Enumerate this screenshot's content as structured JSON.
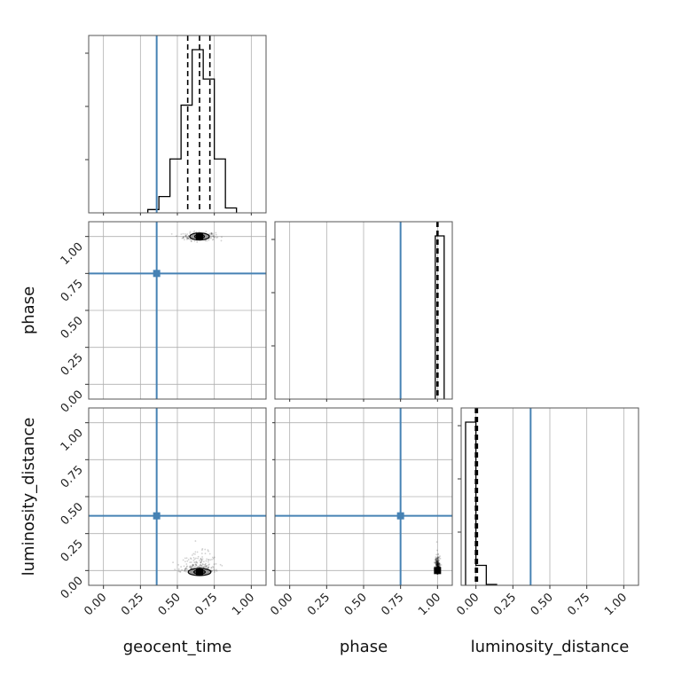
{
  "chart_data": {
    "type": "corner",
    "parameters": [
      "geocent_time",
      "phase",
      "luminosity_distance"
    ],
    "axis_range": [
      -0.1,
      1.1
    ],
    "tick_values": [
      0,
      0.25,
      0.5,
      0.75,
      1.0
    ],
    "tick_labels": [
      "0.00",
      "0.25",
      "0.50",
      "0.75",
      "1.00"
    ],
    "grid": true,
    "truth_color": "#4682b4",
    "truths": {
      "geocent_time": 0.36,
      "phase": 0.75,
      "luminosity_distance": 0.37
    },
    "diagonal": [
      {
        "param": "geocent_time",
        "bin_edges": [
          0.3,
          0.375,
          0.45,
          0.525,
          0.6,
          0.675,
          0.75,
          0.825,
          0.9
        ],
        "counts": [
          0.02,
          0.1,
          0.33,
          0.66,
          1.0,
          0.82,
          0.33,
          0.03
        ],
        "quantiles": [
          0.57,
          0.65,
          0.72
        ]
      },
      {
        "param": "phase",
        "bin_edges": [
          0.985,
          1.045
        ],
        "counts": [
          1.0
        ],
        "quantiles": [
          0.997,
          1.0,
          1.003
        ]
      },
      {
        "param": "luminosity_distance",
        "bin_edges": [
          -0.07,
          0.0,
          0.07,
          0.14
        ],
        "counts": [
          0.9,
          0.11,
          0.005
        ],
        "quantiles": [
          -0.003,
          0.002,
          0.01
        ]
      }
    ],
    "pairs": [
      {
        "x": "geocent_time",
        "y": "phase",
        "center": [
          0.65,
          1.0
        ],
        "spread": [
          0.12,
          0.015
        ],
        "truth": [
          0.36,
          0.75
        ]
      },
      {
        "x": "geocent_time",
        "y": "luminosity_distance",
        "center": [
          0.65,
          -0.01
        ],
        "spread": [
          0.14,
          0.04
        ],
        "truth": [
          0.36,
          0.37
        ]
      },
      {
        "x": "phase",
        "y": "luminosity_distance",
        "center": [
          1.0,
          0.0
        ],
        "spread": [
          0.005,
          0.06
        ],
        "truth": [
          0.75,
          0.37
        ]
      }
    ]
  }
}
